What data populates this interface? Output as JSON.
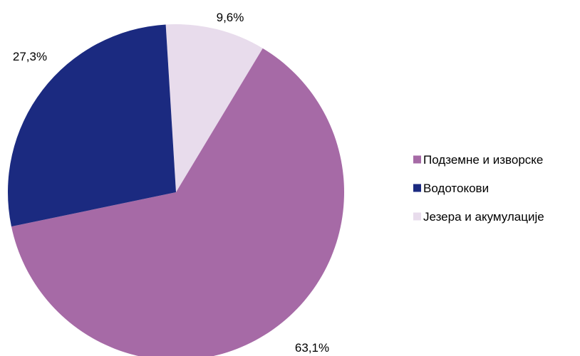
{
  "chart_data": {
    "type": "pie",
    "categories": [
      "Подземне и изворске",
      "Водотокови",
      "Језера и акумулације"
    ],
    "values": [
      63.1,
      27.3,
      9.6
    ],
    "labels": [
      "63,1%",
      "27,3%",
      "9,6%"
    ],
    "colors": [
      "#a66aa6",
      "#1b2a80",
      "#e8dcec"
    ],
    "start_angle_deg": 0,
    "direction": "clockwise",
    "legend_position": "right",
    "title": ""
  }
}
